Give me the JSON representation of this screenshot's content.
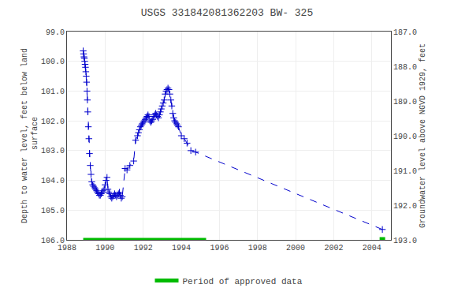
{
  "chart_data": {
    "type": "line",
    "title": "USGS 331842081362203 BW- 325",
    "ylabel": "Depth to water level, feet below land\n surface",
    "y2label": "Groundwater level above NGVD 1929, feet",
    "xlim": [
      1988,
      2005
    ],
    "xticks": [
      1988,
      1990,
      1992,
      1994,
      1996,
      1998,
      2000,
      2002,
      2004
    ],
    "ylim": [
      106.0,
      99.0
    ],
    "yticks": [
      {
        "value": 99.0,
        "label": "99.0"
      },
      {
        "value": 100.0,
        "label": "100.0"
      },
      {
        "value": 101.0,
        "label": "101.0"
      },
      {
        "value": 102.0,
        "label": "102.0"
      },
      {
        "value": 103.0,
        "label": "103.0"
      },
      {
        "value": 104.0,
        "label": "104.0"
      },
      {
        "value": 105.0,
        "label": "105.0"
      },
      {
        "value": 106.0,
        "label": "106.0"
      }
    ],
    "y2lim": [
      193.0,
      187.0
    ],
    "y2ticks": [
      {
        "value": 193.0,
        "label": "193.0"
      },
      {
        "value": 192.0,
        "label": "192.0"
      },
      {
        "value": 191.0,
        "label": "191.0"
      },
      {
        "value": 190.0,
        "label": "190.0"
      },
      {
        "value": 189.0,
        "label": "189.0"
      },
      {
        "value": 188.0,
        "label": "188.0"
      },
      {
        "value": 187.0,
        "label": "187.0"
      }
    ],
    "grid": true,
    "legend": "bottom",
    "x": [
      1988.85,
      1988.87,
      1988.89,
      1988.91,
      1988.93,
      1988.95,
      1988.97,
      1988.99,
      1989.01,
      1989.03,
      1989.05,
      1989.07,
      1989.09,
      1989.12,
      1989.15,
      1989.18,
      1989.22,
      1989.26,
      1989.3,
      1989.35,
      1989.4,
      1989.45,
      1989.5,
      1989.55,
      1989.6,
      1989.65,
      1989.7,
      1989.75,
      1989.8,
      1989.85,
      1989.9,
      1989.95,
      1990.0,
      1990.05,
      1990.1,
      1990.15,
      1990.2,
      1990.25,
      1990.3,
      1990.35,
      1990.4,
      1990.45,
      1990.5,
      1990.55,
      1990.6,
      1990.65,
      1990.7,
      1990.75,
      1990.8,
      1990.85,
      1990.9,
      1991.05,
      1991.15,
      1991.3,
      1991.5,
      1991.6,
      1991.7,
      1991.75,
      1991.8,
      1991.85,
      1991.9,
      1991.95,
      1992.0,
      1992.05,
      1992.1,
      1992.15,
      1992.2,
      1992.25,
      1992.3,
      1992.35,
      1992.4,
      1992.45,
      1992.5,
      1992.55,
      1992.6,
      1992.65,
      1992.7,
      1992.75,
      1992.8,
      1992.85,
      1992.9,
      1992.95,
      1993.0,
      1993.05,
      1993.1,
      1993.15,
      1993.2,
      1993.25,
      1993.3,
      1993.35,
      1993.4,
      1993.45,
      1993.5,
      1993.55,
      1993.6,
      1993.65,
      1993.7,
      1993.75,
      1993.8,
      1993.85,
      1994.0,
      1994.15,
      1994.3,
      1994.5,
      1994.75,
      2004.55
    ],
    "series": [
      {
        "color": "#0000cc",
        "line_style": "dashed",
        "marker": "plus",
        "values": [
          99.65,
          99.75,
          99.85,
          99.9,
          100.0,
          100.1,
          100.2,
          100.35,
          100.5,
          100.7,
          101.0,
          101.3,
          101.7,
          102.2,
          102.6,
          103.1,
          103.5,
          103.8,
          104.05,
          104.15,
          104.2,
          104.25,
          104.3,
          104.35,
          104.4,
          104.45,
          104.5,
          104.5,
          104.45,
          104.4,
          104.35,
          104.3,
          104.15,
          104.0,
          103.9,
          104.3,
          104.4,
          104.45,
          104.55,
          104.6,
          104.55,
          104.5,
          104.45,
          104.5,
          104.55,
          104.5,
          104.45,
          104.4,
          104.5,
          104.6,
          104.55,
          103.6,
          103.65,
          103.5,
          103.35,
          102.65,
          102.5,
          102.4,
          102.3,
          102.2,
          102.15,
          102.1,
          102.05,
          102.0,
          101.95,
          101.9,
          101.85,
          101.8,
          101.85,
          102.0,
          102.05,
          102.0,
          101.95,
          101.85,
          101.8,
          101.75,
          101.8,
          101.85,
          101.9,
          101.8,
          101.7,
          101.6,
          101.5,
          101.4,
          101.3,
          101.1,
          101.0,
          100.95,
          100.9,
          100.95,
          101.1,
          101.3,
          101.5,
          101.75,
          101.9,
          102.0,
          102.05,
          102.1,
          102.15,
          102.2,
          102.5,
          102.6,
          102.75,
          103.0,
          103.05,
          105.65
        ]
      },
      {
        "name": "Period of approved data",
        "color": "#00bb00",
        "x": [
          1988.85,
          1995.3
        ],
        "values": [
          106.0,
          106.0
        ]
      },
      {
        "color": "#00bb00",
        "marker": "square",
        "x": [
          2004.55
        ],
        "values": [
          106.0
        ]
      }
    ]
  }
}
